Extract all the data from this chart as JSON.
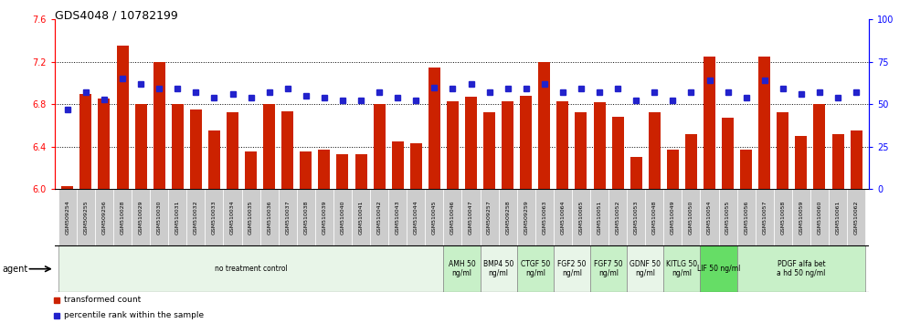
{
  "title": "GDS4048 / 10782199",
  "samples": [
    "GSM509254",
    "GSM509255",
    "GSM509256",
    "GSM510028",
    "GSM510029",
    "GSM510030",
    "GSM510031",
    "GSM510032",
    "GSM510033",
    "GSM510034",
    "GSM510035",
    "GSM510036",
    "GSM510037",
    "GSM510038",
    "GSM510039",
    "GSM510040",
    "GSM510041",
    "GSM510042",
    "GSM510043",
    "GSM510044",
    "GSM510045",
    "GSM510046",
    "GSM510047",
    "GSM509257",
    "GSM509258",
    "GSM509259",
    "GSM510063",
    "GSM510064",
    "GSM510065",
    "GSM510051",
    "GSM510052",
    "GSM510053",
    "GSM510048",
    "GSM510049",
    "GSM510050",
    "GSM510054",
    "GSM510055",
    "GSM510056",
    "GSM510057",
    "GSM510058",
    "GSM510059",
    "GSM510060",
    "GSM510061",
    "GSM510062"
  ],
  "bar_values": [
    6.03,
    6.9,
    6.85,
    7.35,
    6.8,
    7.2,
    6.8,
    6.75,
    6.55,
    6.72,
    6.35,
    6.8,
    6.73,
    6.35,
    6.37,
    6.33,
    6.33,
    6.8,
    6.45,
    6.43,
    7.15,
    6.83,
    6.87,
    6.72,
    6.83,
    6.88,
    7.2,
    6.83,
    6.72,
    6.82,
    6.68,
    6.3,
    6.72,
    6.37,
    6.52,
    7.25,
    6.67,
    6.37,
    7.25,
    6.72,
    6.5,
    6.8,
    6.52,
    6.55
  ],
  "percentile_values": [
    47,
    57,
    53,
    65,
    62,
    59,
    59,
    57,
    54,
    56,
    54,
    57,
    59,
    55,
    54,
    52,
    52,
    57,
    54,
    52,
    60,
    59,
    62,
    57,
    59,
    59,
    62,
    57,
    59,
    57,
    59,
    52,
    57,
    52,
    57,
    64,
    57,
    54,
    64,
    59,
    56,
    57,
    54,
    57
  ],
  "ylim_left": [
    6.0,
    7.6
  ],
  "ylim_right": [
    0,
    100
  ],
  "yticks_left": [
    6.0,
    6.4,
    6.8,
    7.2,
    7.6
  ],
  "yticks_right": [
    0,
    25,
    50,
    75,
    100
  ],
  "bar_color": "#cc2200",
  "dot_color": "#2222cc",
  "grid_lines": [
    6.4,
    6.8,
    7.2
  ],
  "agent_groups": [
    {
      "label": "no treatment control",
      "start": 0,
      "end": 21,
      "bg": "#e8f5e8"
    },
    {
      "label": "AMH 50\nng/ml",
      "start": 21,
      "end": 23,
      "bg": "#c8f0c8"
    },
    {
      "label": "BMP4 50\nng/ml",
      "start": 23,
      "end": 25,
      "bg": "#e8f5e8"
    },
    {
      "label": "CTGF 50\nng/ml",
      "start": 25,
      "end": 27,
      "bg": "#c8f0c8"
    },
    {
      "label": "FGF2 50\nng/ml",
      "start": 27,
      "end": 29,
      "bg": "#e8f5e8"
    },
    {
      "label": "FGF7 50\nng/ml",
      "start": 29,
      "end": 31,
      "bg": "#c8f0c8"
    },
    {
      "label": "GDNF 50\nng/ml",
      "start": 31,
      "end": 33,
      "bg": "#e8f5e8"
    },
    {
      "label": "KITLG 50\nng/ml",
      "start": 33,
      "end": 35,
      "bg": "#c8f0c8"
    },
    {
      "label": "LIF 50 ng/ml",
      "start": 35,
      "end": 37,
      "bg": "#66dd66"
    },
    {
      "label": "PDGF alfa bet\na hd 50 ng/ml",
      "start": 37,
      "end": 44,
      "bg": "#c8f0c8"
    }
  ],
  "legend_items": [
    {
      "label": "transformed count",
      "color": "#cc2200"
    },
    {
      "label": "percentile rank within the sample",
      "color": "#2222cc"
    }
  ],
  "fig_width": 9.96,
  "fig_height": 3.54,
  "dpi": 100
}
